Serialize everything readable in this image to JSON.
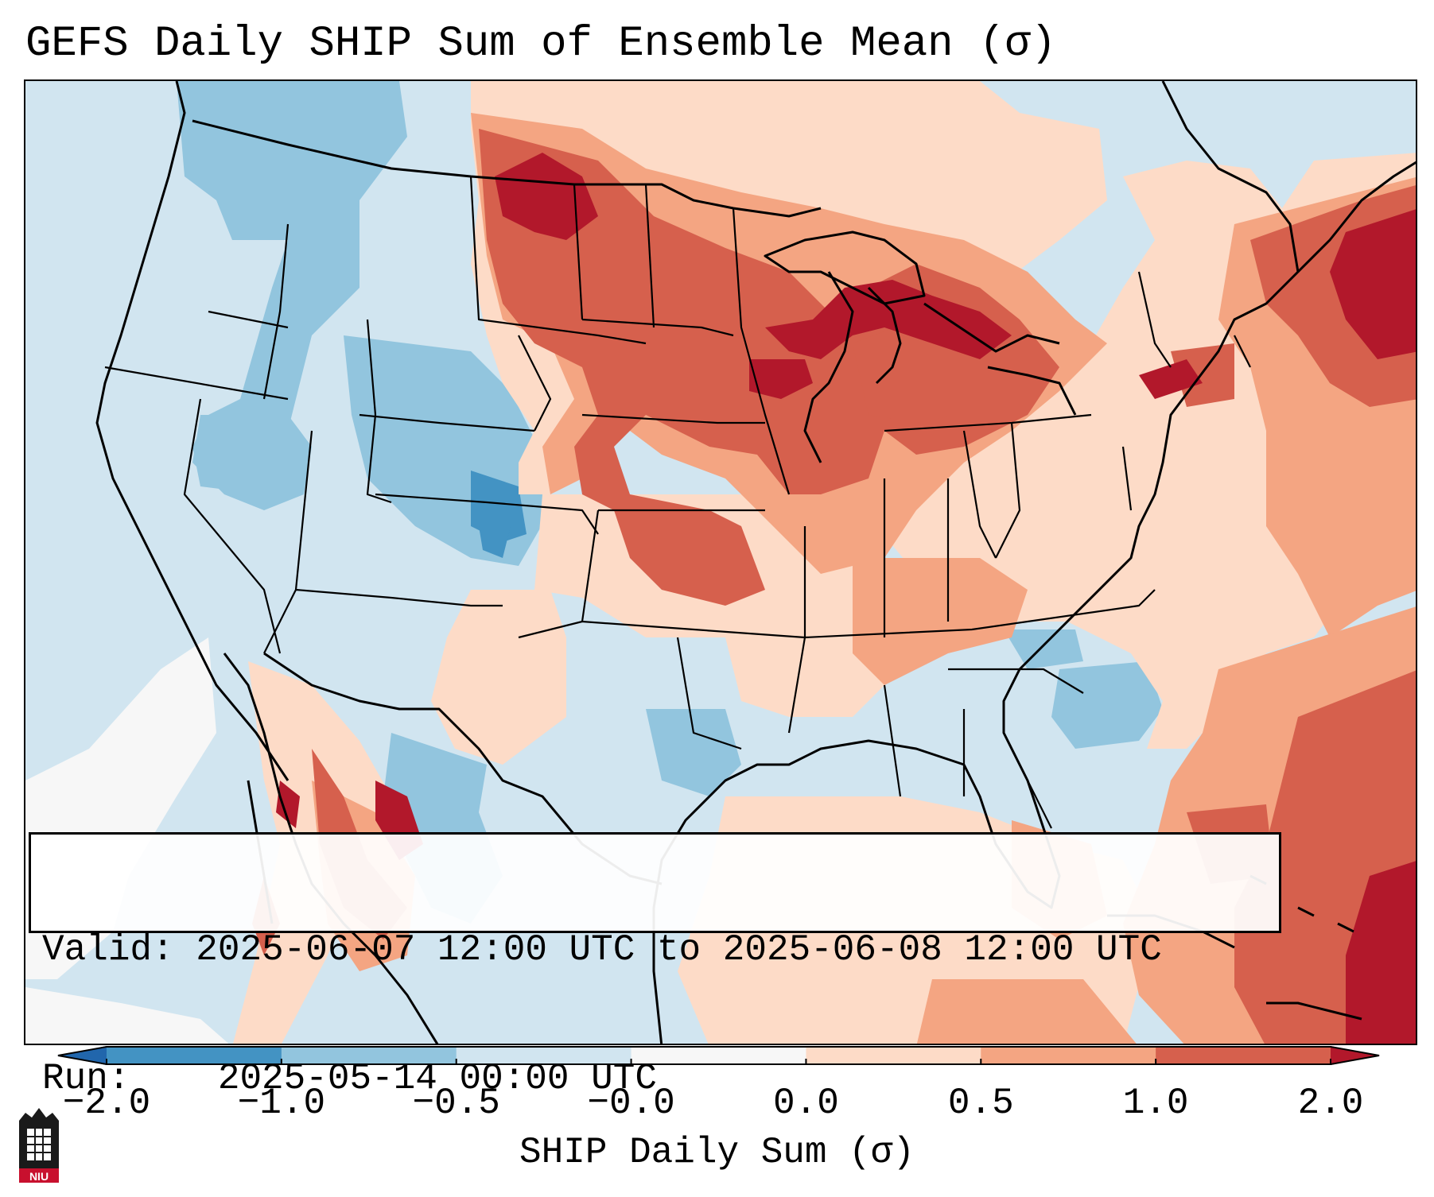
{
  "title": "GEFS Daily SHIP Sum of Ensemble Mean (σ)",
  "info": {
    "valid_label": "Valid:",
    "valid_value": "2025-06-07 12:00 UTC to 2025-06-08 12:00 UTC",
    "run_label": "Run:",
    "run_value": "2025-05-14 00:00 UTC"
  },
  "colorbar": {
    "label": "SHIP Daily Sum (σ)",
    "ticks": [
      "−2.0",
      "−1.0",
      "−0.5",
      "−0.0",
      "0.0",
      "0.5",
      "1.0",
      "2.0"
    ],
    "bins": [
      {
        "range": "< -2.0",
        "color": "#2166ac"
      },
      {
        "range": "-2.0 to -1.0",
        "color": "#4393c3"
      },
      {
        "range": "-1.0 to -0.5",
        "color": "#92c5de"
      },
      {
        "range": "-0.5 to -0.0",
        "color": "#d1e5f0"
      },
      {
        "range": "-0.0 to 0.0",
        "color": "#f7f7f7"
      },
      {
        "range": "0.0 to 0.5",
        "color": "#fddbc7"
      },
      {
        "range": "0.5 to 1.0",
        "color": "#f4a582"
      },
      {
        "range": "1.0 to 2.0",
        "color": "#d6604d"
      },
      {
        "range": "> 2.0",
        "color": "#b2182b"
      }
    ]
  },
  "logo": {
    "text": "NIU"
  },
  "colors": {
    "neg_strong": "#2166ac",
    "neg_mid": "#4393c3",
    "neg_light": "#92c5de",
    "neg_pale": "#d1e5f0",
    "neutral": "#f7f7f7",
    "pos_pale": "#fddbc7",
    "pos_light": "#f4a582",
    "pos_mid": "#d6604d",
    "pos_strong": "#b2182b"
  }
}
